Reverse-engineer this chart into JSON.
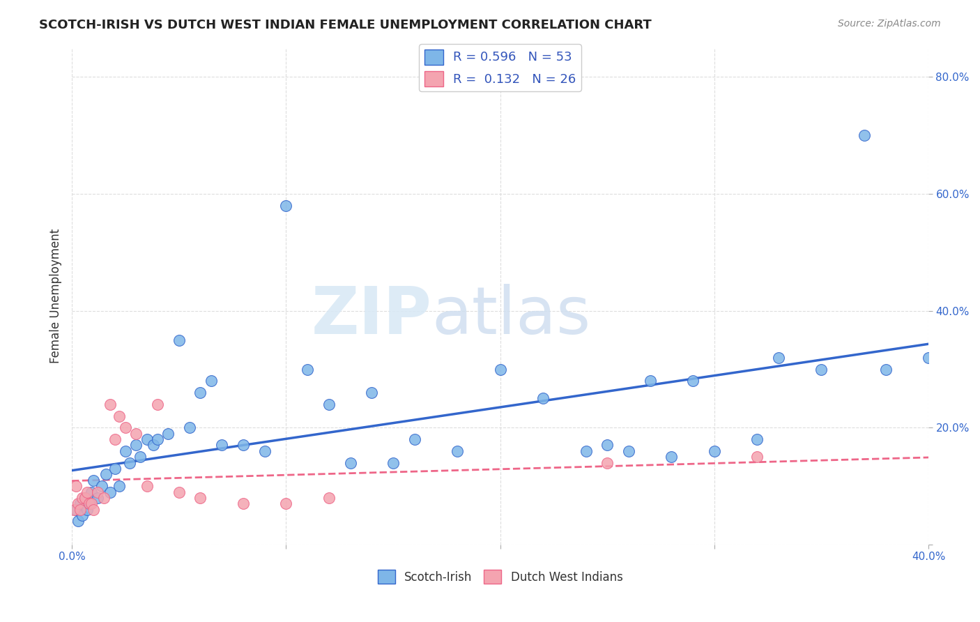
{
  "title": "SCOTCH-IRISH VS DUTCH WEST INDIAN FEMALE UNEMPLOYMENT CORRELATION CHART",
  "source": "Source: ZipAtlas.com",
  "ylabel": "Female Unemployment",
  "xlim": [
    0.0,
    0.4
  ],
  "ylim": [
    0.0,
    0.85
  ],
  "blue_color": "#7EB6E8",
  "pink_color": "#F4A4B0",
  "line_blue": "#3366CC",
  "line_pink": "#EE6688",
  "R_blue": 0.596,
  "N_blue": 53,
  "R_pink": 0.132,
  "N_pink": 26,
  "legend_label_blue": "Scotch-Irish",
  "legend_label_pink": "Dutch West Indians",
  "legend_text_color": "#3355BB",
  "scotch_irish_x": [
    0.002,
    0.003,
    0.004,
    0.005,
    0.006,
    0.007,
    0.008,
    0.009,
    0.01,
    0.012,
    0.014,
    0.016,
    0.018,
    0.02,
    0.022,
    0.025,
    0.027,
    0.03,
    0.032,
    0.035,
    0.038,
    0.04,
    0.045,
    0.05,
    0.055,
    0.06,
    0.065,
    0.07,
    0.08,
    0.09,
    0.1,
    0.11,
    0.12,
    0.13,
    0.14,
    0.15,
    0.16,
    0.18,
    0.2,
    0.22,
    0.24,
    0.25,
    0.26,
    0.27,
    0.28,
    0.29,
    0.3,
    0.32,
    0.33,
    0.35,
    0.37,
    0.38,
    0.4
  ],
  "scotch_irish_y": [
    0.06,
    0.04,
    0.07,
    0.05,
    0.08,
    0.06,
    0.07,
    0.09,
    0.11,
    0.08,
    0.1,
    0.12,
    0.09,
    0.13,
    0.1,
    0.16,
    0.14,
    0.17,
    0.15,
    0.18,
    0.17,
    0.18,
    0.19,
    0.35,
    0.2,
    0.26,
    0.28,
    0.17,
    0.17,
    0.16,
    0.58,
    0.3,
    0.24,
    0.14,
    0.26,
    0.14,
    0.18,
    0.16,
    0.3,
    0.25,
    0.16,
    0.17,
    0.16,
    0.28,
    0.15,
    0.28,
    0.16,
    0.18,
    0.32,
    0.3,
    0.7,
    0.3,
    0.32
  ],
  "dutch_x": [
    0.001,
    0.002,
    0.003,
    0.004,
    0.005,
    0.006,
    0.007,
    0.008,
    0.009,
    0.01,
    0.012,
    0.015,
    0.018,
    0.02,
    0.022,
    0.025,
    0.03,
    0.035,
    0.04,
    0.05,
    0.06,
    0.08,
    0.1,
    0.12,
    0.25,
    0.32
  ],
  "dutch_y": [
    0.06,
    0.1,
    0.07,
    0.06,
    0.08,
    0.08,
    0.09,
    0.07,
    0.07,
    0.06,
    0.09,
    0.08,
    0.24,
    0.18,
    0.22,
    0.2,
    0.19,
    0.1,
    0.24,
    0.09,
    0.08,
    0.07,
    0.07,
    0.08,
    0.14,
    0.15
  ],
  "background_color": "#FFFFFF",
  "grid_color": "#DDDDDD"
}
